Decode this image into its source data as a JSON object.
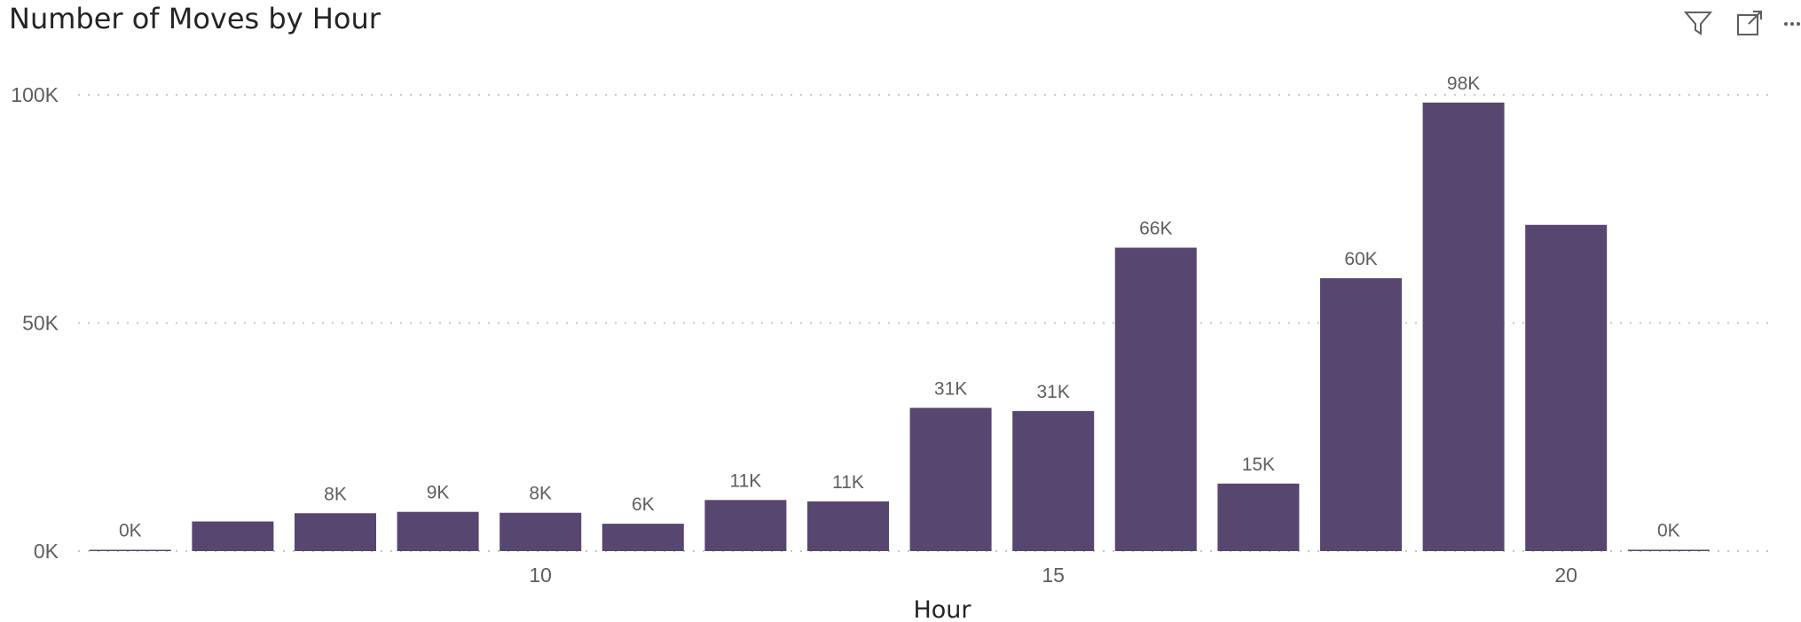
{
  "header": {
    "title": "Number of Moves by Hour",
    "icons": {
      "filter": "filter-icon",
      "focus": "focus-mode-icon",
      "more": "more-options-icon"
    }
  },
  "colors": {
    "bar": "#574670",
    "grid": "#c8c6c4",
    "text": "#605e5c"
  },
  "chart_data": {
    "type": "bar",
    "title": "Number of Moves by Hour",
    "xlabel": "Hour",
    "ylabel": "",
    "x": [
      6,
      7,
      8,
      9,
      10,
      11,
      12,
      13,
      14,
      15,
      16,
      17,
      18,
      19,
      20,
      21
    ],
    "values": [
      200,
      6500,
      8300,
      8600,
      8400,
      6000,
      11200,
      10900,
      31400,
      30700,
      66500,
      14800,
      59800,
      98300,
      71500,
      300
    ],
    "data_labels": [
      "0K",
      "",
      "8K",
      "9K",
      "8K",
      "6K",
      "11K",
      "11K",
      "31K",
      "31K",
      "66K",
      "15K",
      "60K",
      "98K",
      "",
      "0K"
    ],
    "x_ticks": [
      10,
      15,
      20
    ],
    "x_tick_labels": [
      "10",
      "15",
      "20"
    ],
    "y_ticks": [
      0,
      50000,
      100000
    ],
    "y_tick_labels": [
      "0K",
      "50K",
      "100K"
    ],
    "ylim": [
      0,
      100000
    ],
    "grid": true
  }
}
